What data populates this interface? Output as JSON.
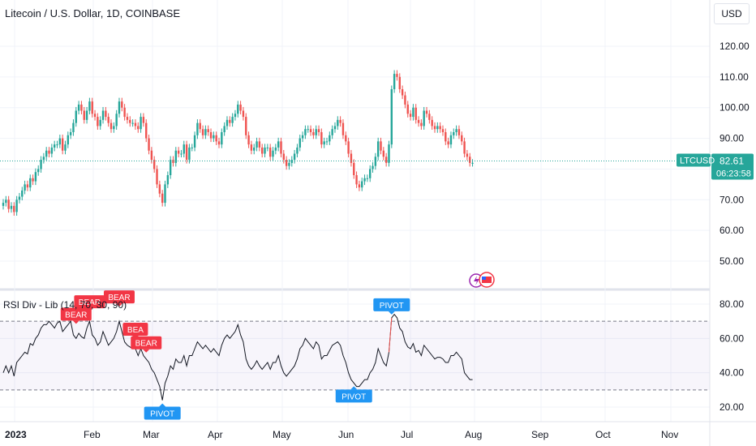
{
  "title": "Litecoin / U.S. Dollar, 1D, COINBASE",
  "currency_button": "USD",
  "price_tag": {
    "symbol": "LTCUSD",
    "price": "82.61",
    "countdown": "06:23:58"
  },
  "indicator_label": "RSI Div - Lib (14, 70, 30, 90)",
  "colors": {
    "up": "#26a69a",
    "down": "#ef5350",
    "bear": "#f23645",
    "pivot": "#2196f3",
    "tag": "#26a69a"
  },
  "chart_data": [
    {
      "type": "candlestick",
      "ylim": [
        40,
        125
      ],
      "y_ticks": [
        "120.00",
        "110.00",
        "100.00",
        "90.00",
        "80.00",
        "70.00",
        "60.00",
        "50.00"
      ],
      "x_ticks": [
        "2023",
        "Feb",
        "Mar",
        "Apr",
        "May",
        "Jun",
        "Jul",
        "Aug",
        "Sep",
        "Oct",
        "Nov"
      ],
      "close": [
        69,
        70,
        67,
        68,
        66,
        70,
        71,
        73,
        75,
        74,
        77,
        76,
        79,
        80,
        83,
        84,
        86,
        85,
        87,
        88,
        88,
        90,
        86,
        88,
        91,
        92,
        95,
        99,
        101,
        99,
        96,
        99,
        102,
        98,
        97,
        94,
        96,
        99,
        97,
        95,
        93,
        94,
        98,
        102,
        100,
        97,
        96,
        95,
        95,
        94,
        93,
        97,
        95,
        90,
        86,
        83,
        80,
        75,
        72,
        69,
        75,
        78,
        83,
        82,
        86,
        85,
        85,
        88,
        83,
        87,
        87,
        91,
        95,
        93,
        91,
        93,
        92,
        90,
        91,
        89,
        88,
        92,
        94,
        96,
        95,
        97,
        98,
        101,
        99,
        97,
        91,
        88,
        86,
        87,
        89,
        87,
        85,
        87,
        87,
        84,
        86,
        87,
        89,
        85,
        83,
        81,
        82,
        83,
        85,
        87,
        90,
        91,
        93,
        93,
        92,
        91,
        93,
        92,
        88,
        89,
        89,
        91,
        93,
        94,
        96,
        95,
        91,
        89,
        85,
        82,
        78,
        75,
        74,
        76,
        77,
        77,
        80,
        81,
        84,
        89,
        86,
        84,
        82,
        88,
        106,
        111,
        110,
        106,
        104,
        101,
        98,
        97,
        100,
        96,
        95,
        94,
        99,
        98,
        96,
        94,
        93,
        94,
        93,
        92,
        89,
        88,
        91,
        92,
        93,
        91,
        89,
        85,
        84,
        82,
        82
      ]
    },
    {
      "type": "line",
      "name": "RSI Div - Lib",
      "ylim": [
        15,
        85
      ],
      "y_ticks": [
        "80.00",
        "60.00",
        "40.00",
        "20.00"
      ],
      "levels": [
        70,
        30
      ],
      "values": [
        40,
        44,
        40,
        44,
        38,
        46,
        48,
        50,
        52,
        51,
        57,
        56,
        60,
        62,
        66,
        68,
        68,
        70,
        68,
        66,
        69,
        70,
        64,
        66,
        68,
        70,
        62,
        60,
        63,
        61,
        60,
        66,
        70,
        62,
        60,
        56,
        58,
        64,
        60,
        56,
        58,
        60,
        64,
        70,
        64,
        58,
        56,
        55,
        54,
        54,
        50,
        54,
        50,
        48,
        46,
        42,
        40,
        36,
        32,
        24,
        34,
        38,
        44,
        42,
        48,
        46,
        46,
        50,
        44,
        50,
        50,
        54,
        58,
        56,
        54,
        56,
        54,
        52,
        54,
        52,
        50,
        56,
        60,
        62,
        60,
        62,
        64,
        68,
        62,
        58,
        48,
        44,
        42,
        44,
        47,
        44,
        42,
        44,
        46,
        42,
        46,
        46,
        50,
        44,
        40,
        38,
        40,
        42,
        44,
        48,
        54,
        56,
        60,
        58,
        56,
        54,
        58,
        56,
        48,
        50,
        50,
        53,
        56,
        57,
        58,
        56,
        50,
        46,
        40,
        36,
        34,
        32,
        32,
        34,
        36,
        36,
        40,
        42,
        46,
        54,
        50,
        46,
        44,
        52,
        72,
        74,
        72,
        66,
        64,
        58,
        55,
        54,
        57,
        52,
        53,
        50,
        56,
        54,
        52,
        50,
        48,
        49,
        49,
        48,
        46,
        46,
        50,
        50,
        52,
        50,
        48,
        40,
        38,
        36,
        36
      ],
      "markers": [
        {
          "index": 27,
          "label": "BEAR"
        },
        {
          "index": 32,
          "label": "BEAR"
        },
        {
          "index": 43,
          "label": "BEAR"
        },
        {
          "index": 49,
          "label": "BEA"
        },
        {
          "index": 53,
          "label": "BEAR"
        },
        {
          "index": 59,
          "label": "PIVOT"
        },
        {
          "index": 130,
          "label": "PIVOT"
        },
        {
          "index": 144,
          "label": "PIVOT"
        }
      ]
    }
  ]
}
